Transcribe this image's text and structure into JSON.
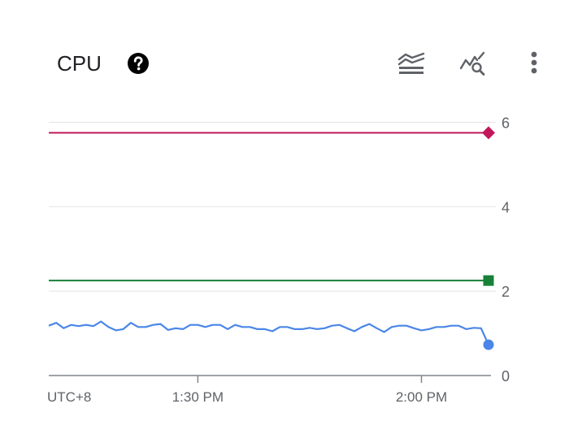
{
  "panel": {
    "title": "CPU",
    "icons": {
      "help": "help-circle-icon",
      "legend": "legend-toggle-icon",
      "explore": "query-explore-icon",
      "more": "more-vert-icon"
    }
  },
  "chart_data": {
    "type": "line",
    "title": "CPU",
    "timezone_label": "UTC+8",
    "x_ticks": [
      {
        "label": "1:30 PM",
        "time": "13:30"
      },
      {
        "label": "2:00 PM",
        "time": "14:00"
      }
    ],
    "x_range": [
      "13:10",
      "14:09"
    ],
    "y_ticks": [
      0,
      2,
      4,
      6
    ],
    "ylim": [
      0,
      6.2
    ],
    "grid": true,
    "series": [
      {
        "role": "threshold",
        "color": "#c2185b",
        "marker": "diamond",
        "value": 5.75
      },
      {
        "role": "threshold",
        "color": "#188038",
        "marker": "square",
        "value": 2.25
      },
      {
        "role": "usage",
        "color": "#4a86e8",
        "marker": "circle",
        "times": [
          "13:10",
          "13:11",
          "13:12",
          "13:13",
          "13:14",
          "13:15",
          "13:16",
          "13:17",
          "13:18",
          "13:19",
          "13:20",
          "13:21",
          "13:22",
          "13:23",
          "13:24",
          "13:25",
          "13:26",
          "13:27",
          "13:28",
          "13:29",
          "13:30",
          "13:31",
          "13:32",
          "13:33",
          "13:34",
          "13:35",
          "13:36",
          "13:37",
          "13:38",
          "13:39",
          "13:40",
          "13:41",
          "13:42",
          "13:43",
          "13:44",
          "13:45",
          "13:46",
          "13:47",
          "13:48",
          "13:49",
          "13:50",
          "13:51",
          "13:52",
          "13:53",
          "13:54",
          "13:55",
          "13:56",
          "13:57",
          "13:58",
          "13:59",
          "14:00",
          "14:01",
          "14:02",
          "14:03",
          "14:04",
          "14:05",
          "14:06",
          "14:07",
          "14:08",
          "14:09"
        ],
        "values": [
          1.18,
          1.25,
          1.12,
          1.2,
          1.17,
          1.2,
          1.17,
          1.28,
          1.15,
          1.07,
          1.1,
          1.25,
          1.15,
          1.15,
          1.2,
          1.22,
          1.08,
          1.12,
          1.1,
          1.2,
          1.2,
          1.15,
          1.2,
          1.2,
          1.1,
          1.2,
          1.15,
          1.15,
          1.1,
          1.1,
          1.05,
          1.15,
          1.15,
          1.1,
          1.1,
          1.13,
          1.1,
          1.12,
          1.18,
          1.2,
          1.12,
          1.05,
          1.15,
          1.22,
          1.12,
          1.03,
          1.15,
          1.18,
          1.18,
          1.12,
          1.07,
          1.1,
          1.15,
          1.15,
          1.18,
          1.18,
          1.1,
          1.13,
          1.12,
          0.73
        ]
      }
    ]
  }
}
